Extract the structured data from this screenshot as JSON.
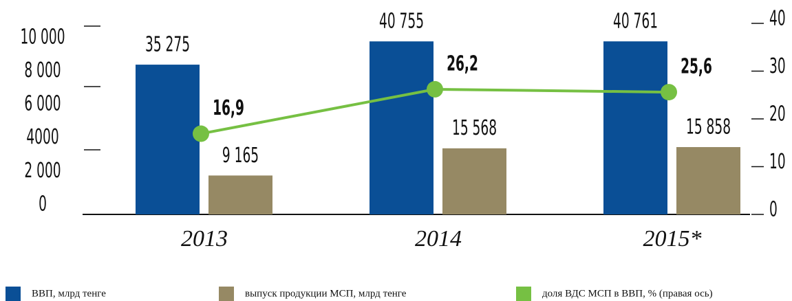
{
  "chart_data": {
    "type": "bar",
    "categories": [
      "2013",
      "2014",
      "2015*"
    ],
    "series": [
      {
        "name": "ВВП, млрд тенге",
        "color": "#0a4f96",
        "values": [
          35275,
          40755,
          40761
        ],
        "value_labels": [
          "35 275",
          "40 755",
          "40 761"
        ]
      },
      {
        "name": "выпуск продукции МСП, млрд тенге",
        "color": "#968964",
        "values": [
          9165,
          15568,
          15858
        ],
        "value_labels": [
          "9 165",
          "15 568",
          "15 858"
        ]
      },
      {
        "name": "доля ВДС МСП в ВВП, % (правая ось)",
        "type": "line",
        "axis": "y2",
        "color": "#76c043",
        "values": [
          16.9,
          26.2,
          25.6
        ],
        "value_labels": [
          "16,9",
          "26,2",
          "25,6"
        ]
      }
    ],
    "ylim": [
      0,
      45000
    ],
    "y_axis_labels": [
      "10 000",
      "8 000",
      "6 000",
      "4000",
      "2 000",
      "0"
    ],
    "y2lim": [
      0,
      40
    ],
    "y2ticks": [
      0,
      10,
      20,
      30,
      40
    ]
  }
}
